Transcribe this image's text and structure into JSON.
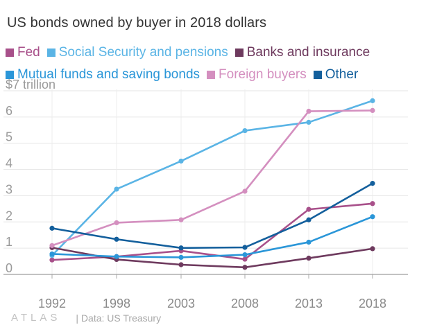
{
  "header": {
    "title": "US bonds owned by buyer in 2018 dollars"
  },
  "footer": {
    "brand": "ATLAS",
    "source": "| Data: US Treasury"
  },
  "chart_data": {
    "type": "line",
    "title": "US bonds owned by buyer in 2018 dollars",
    "x": [
      "1992",
      "1998",
      "2003",
      "2008",
      "2013",
      "2018"
    ],
    "y_ticks": [
      "0",
      "1",
      "2",
      "3",
      "4",
      "5",
      "6",
      "$7 trillion"
    ],
    "ylim": [
      0,
      7
    ],
    "grid": true,
    "legend_position": "top",
    "series": [
      {
        "name": "Fed",
        "color": "#a8508a",
        "values": [
          0.55,
          0.68,
          0.9,
          0.58,
          2.48,
          2.7
        ]
      },
      {
        "name": "Social Security and pensions",
        "color": "#5ab4e5",
        "values": [
          0.72,
          3.25,
          4.32,
          5.48,
          5.8,
          6.62
        ]
      },
      {
        "name": "Banks and insurance",
        "color": "#6e3a5e",
        "values": [
          1.02,
          0.57,
          0.37,
          0.27,
          0.62,
          0.98
        ]
      },
      {
        "name": "Mutual funds and saving bonds",
        "color": "#2a96d8",
        "values": [
          0.78,
          0.68,
          0.65,
          0.75,
          1.23,
          2.2
        ]
      },
      {
        "name": "Foreign buyers",
        "color": "#d48fbf",
        "values": [
          1.1,
          1.97,
          2.08,
          3.17,
          6.22,
          6.25
        ]
      },
      {
        "name": "Other",
        "color": "#135f9c",
        "values": [
          1.76,
          1.34,
          1.01,
          1.03,
          2.08,
          3.47
        ]
      }
    ]
  }
}
